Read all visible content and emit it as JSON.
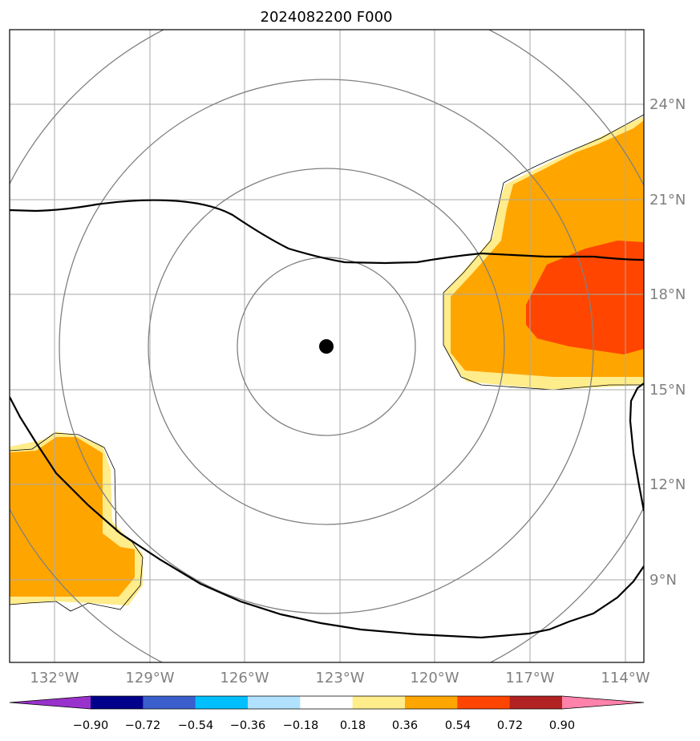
{
  "title": "2024082200 F000",
  "map": {
    "lon_labels": [
      "132°W",
      "129°W",
      "126°W",
      "123°W",
      "120°W",
      "117°W",
      "114°W"
    ],
    "lat_labels": [
      "9°N",
      "12°N",
      "15°N",
      "18°N",
      "21°N",
      "24°N"
    ],
    "range_rings": 4,
    "center_marker": "storm-center-dot"
  },
  "colorbar": {
    "ticks": [
      "−0.90",
      "−0.72",
      "−0.54",
      "−0.36",
      "−0.18",
      "0.18",
      "0.36",
      "0.54",
      "0.72",
      "0.90"
    ],
    "colors": [
      "#9932cc",
      "#00008b",
      "#3a5fcd",
      "#00bfff",
      "#b0e2ff",
      "#ffffff",
      "#ffec8b",
      "#ffa500",
      "#ff4500",
      "#b22222",
      "#ff82ab"
    ],
    "extend": "both"
  },
  "colors": {
    "grid": "#aaaaaa",
    "rings": "#808080",
    "coast": "#000000",
    "field_low": "#ffec8b",
    "field_mid": "#ffa500",
    "field_high": "#ff4500"
  }
}
